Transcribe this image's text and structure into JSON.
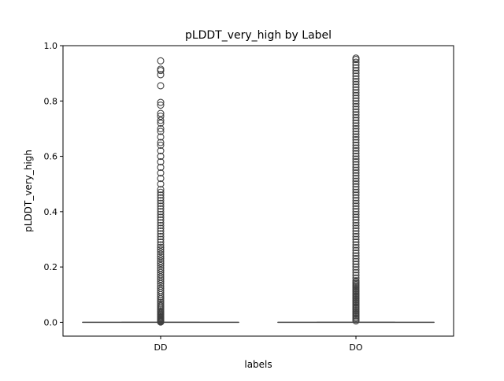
{
  "chart_data": {
    "type": "box",
    "title": "pLDDT_very_high by Label",
    "xlabel": "labels",
    "ylabel": "pLDDT_very_high",
    "ylim": [
      -0.05,
      1.0
    ],
    "y_ticks": [
      0.0,
      0.2,
      0.4,
      0.6,
      0.8,
      1.0
    ],
    "y_tick_labels": [
      "0.0",
      "0.2",
      "0.4",
      "0.6",
      "0.8",
      "1.0"
    ],
    "grid": false,
    "legend": "none",
    "categories": [
      "DD",
      "DO"
    ],
    "boxes": [
      {
        "name": "DD",
        "min": 0.0,
        "q1": 0.0,
        "median": 0.0,
        "q3": 0.0,
        "max": 0.0,
        "outliers": [
          0.001,
          0.003,
          0.005,
          0.008,
          0.011,
          0.014,
          0.017,
          0.02,
          0.024,
          0.028,
          0.032,
          0.036,
          0.04,
          0.045,
          0.05,
          0.055,
          0.06,
          0.066,
          0.072,
          0.078,
          0.085,
          0.092,
          0.1,
          0.108,
          0.115,
          0.123,
          0.131,
          0.14,
          0.148,
          0.156,
          0.164,
          0.172,
          0.18,
          0.188,
          0.196,
          0.205,
          0.213,
          0.221,
          0.23,
          0.238,
          0.246,
          0.255,
          0.263,
          0.271,
          0.28,
          0.29,
          0.3,
          0.31,
          0.32,
          0.33,
          0.34,
          0.35,
          0.36,
          0.37,
          0.38,
          0.39,
          0.4,
          0.41,
          0.42,
          0.43,
          0.44,
          0.45,
          0.46,
          0.47,
          0.48,
          0.5,
          0.52,
          0.54,
          0.56,
          0.58,
          0.6,
          0.62,
          0.64,
          0.65,
          0.67,
          0.69,
          0.7,
          0.72,
          0.73,
          0.745,
          0.755,
          0.785,
          0.795,
          0.855,
          0.895,
          0.91,
          0.915,
          0.945
        ]
      },
      {
        "name": "DO",
        "min": 0.0,
        "q1": 0.0,
        "median": 0.0,
        "q3": 0.0,
        "max": 0.0,
        "outliers": [
          0.005,
          0.01,
          0.015,
          0.02,
          0.025,
          0.03,
          0.035,
          0.04,
          0.045,
          0.05,
          0.055,
          0.06,
          0.065,
          0.07,
          0.075,
          0.08,
          0.085,
          0.09,
          0.095,
          0.1,
          0.105,
          0.11,
          0.115,
          0.12,
          0.125,
          0.13,
          0.135,
          0.14,
          0.145,
          0.15,
          0.16,
          0.17,
          0.18,
          0.19,
          0.2,
          0.21,
          0.22,
          0.23,
          0.24,
          0.25,
          0.26,
          0.27,
          0.28,
          0.29,
          0.3,
          0.31,
          0.32,
          0.33,
          0.34,
          0.35,
          0.36,
          0.37,
          0.38,
          0.39,
          0.4,
          0.41,
          0.42,
          0.43,
          0.44,
          0.45,
          0.46,
          0.47,
          0.48,
          0.49,
          0.5,
          0.51,
          0.52,
          0.53,
          0.54,
          0.55,
          0.56,
          0.57,
          0.58,
          0.59,
          0.6,
          0.61,
          0.62,
          0.63,
          0.64,
          0.65,
          0.66,
          0.67,
          0.68,
          0.69,
          0.7,
          0.71,
          0.72,
          0.73,
          0.74,
          0.75,
          0.76,
          0.77,
          0.78,
          0.79,
          0.8,
          0.81,
          0.82,
          0.83,
          0.84,
          0.85,
          0.86,
          0.87,
          0.88,
          0.89,
          0.9,
          0.91,
          0.92,
          0.93,
          0.94,
          0.95,
          0.955
        ]
      }
    ],
    "colors": {
      "box_line": "#3f3f3f",
      "outlier_edge": "#3f3f3f",
      "axes": "#000000",
      "background": "#ffffff"
    }
  }
}
